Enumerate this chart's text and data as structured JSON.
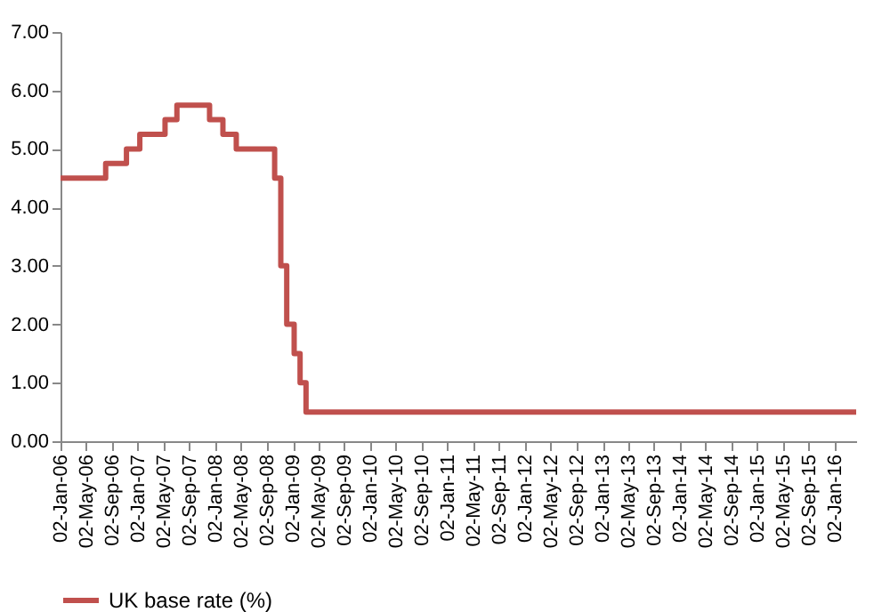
{
  "chart_data": {
    "type": "step",
    "x": [
      "2006-01-02",
      "2006-08-03",
      "2006-11-09",
      "2007-01-11",
      "2007-05-10",
      "2007-07-05",
      "2007-12-06",
      "2008-02-07",
      "2008-04-10",
      "2008-10-08",
      "2008-11-06",
      "2008-12-04",
      "2009-01-08",
      "2009-02-05",
      "2009-03-05",
      "2016-04-12"
    ],
    "series": [
      {
        "name": "UK base rate (%)",
        "color": "#c0504d",
        "values": [
          4.5,
          4.75,
          5.0,
          5.25,
          5.5,
          5.75,
          5.5,
          5.25,
          5.0,
          4.5,
          3.0,
          2.0,
          1.5,
          1.0,
          0.5,
          0.5
        ]
      }
    ],
    "xlim": [
      "2006-01-02",
      "2016-04-12"
    ],
    "xticks": [
      {
        "value": "2006-01-02",
        "label": "02-Jan-06"
      },
      {
        "value": "2006-05-02",
        "label": "02-May-06"
      },
      {
        "value": "2006-09-02",
        "label": "02-Sep-06"
      },
      {
        "value": "2007-01-02",
        "label": "02-Jan-07"
      },
      {
        "value": "2007-05-02",
        "label": "02-May-07"
      },
      {
        "value": "2007-09-02",
        "label": "02-Sep-07"
      },
      {
        "value": "2008-01-02",
        "label": "02-Jan-08"
      },
      {
        "value": "2008-05-02",
        "label": "02-May-08"
      },
      {
        "value": "2008-09-02",
        "label": "02-Sep-08"
      },
      {
        "value": "2009-01-02",
        "label": "02-Jan-09"
      },
      {
        "value": "2009-05-02",
        "label": "02-May-09"
      },
      {
        "value": "2009-09-02",
        "label": "02-Sep-09"
      },
      {
        "value": "2010-01-02",
        "label": "02-Jan-10"
      },
      {
        "value": "2010-05-02",
        "label": "02-May-10"
      },
      {
        "value": "2010-09-02",
        "label": "02-Sep-10"
      },
      {
        "value": "2011-01-02",
        "label": "02-Jan-11"
      },
      {
        "value": "2011-05-02",
        "label": "02-May-11"
      },
      {
        "value": "2011-09-02",
        "label": "02-Sep-11"
      },
      {
        "value": "2012-01-02",
        "label": "02-Jan-12"
      },
      {
        "value": "2012-05-02",
        "label": "02-May-12"
      },
      {
        "value": "2012-09-02",
        "label": "02-Sep-12"
      },
      {
        "value": "2013-01-02",
        "label": "02-Jan-13"
      },
      {
        "value": "2013-05-02",
        "label": "02-May-13"
      },
      {
        "value": "2013-09-02",
        "label": "02-Sep-13"
      },
      {
        "value": "2014-01-02",
        "label": "02-Jan-14"
      },
      {
        "value": "2014-05-02",
        "label": "02-May-14"
      },
      {
        "value": "2014-09-02",
        "label": "02-Sep-14"
      },
      {
        "value": "2015-01-02",
        "label": "02-Jan-15"
      },
      {
        "value": "2015-05-02",
        "label": "02-May-15"
      },
      {
        "value": "2015-09-02",
        "label": "02-Sep-15"
      },
      {
        "value": "2016-01-02",
        "label": "02-Jan-16"
      }
    ],
    "ylim": [
      0,
      7
    ],
    "yticks": [
      {
        "value": 0,
        "label": "0.00"
      },
      {
        "value": 1,
        "label": "1.00"
      },
      {
        "value": 2,
        "label": "2.00"
      },
      {
        "value": 3,
        "label": "3.00"
      },
      {
        "value": 4,
        "label": "4.00"
      },
      {
        "value": 5,
        "label": "5.00"
      },
      {
        "value": 6,
        "label": "6.00"
      },
      {
        "value": 7,
        "label": "7.00"
      }
    ],
    "grid": false,
    "legend": "bottom",
    "line_style": "solid"
  }
}
